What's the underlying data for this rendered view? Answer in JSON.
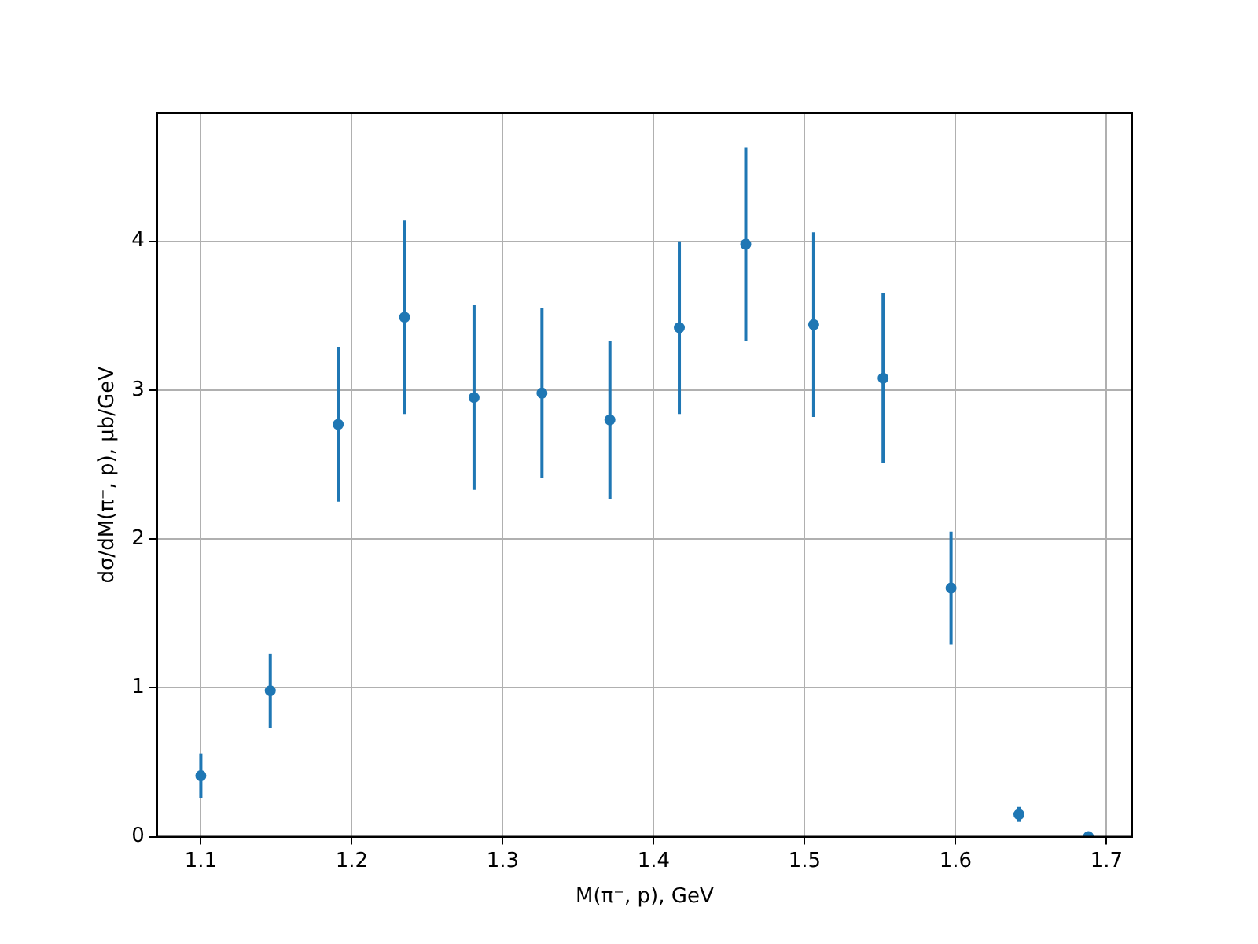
{
  "chart_data": {
    "type": "scatter",
    "xlabel": "M(π⁻, p), GeV",
    "ylabel": "dσ/dM(π⁻, p), μb/GeV",
    "x": [
      1.1,
      1.146,
      1.191,
      1.235,
      1.281,
      1.326,
      1.371,
      1.417,
      1.461,
      1.506,
      1.552,
      1.597,
      1.642,
      1.688
    ],
    "series": [
      {
        "color": "#1f77b4",
        "values": [
          0.41,
          0.98,
          2.77,
          3.49,
          2.95,
          2.98,
          2.8,
          3.42,
          3.98,
          3.44,
          3.08,
          1.67,
          0.15,
          0.0
        ],
        "errors": [
          0.15,
          0.25,
          0.52,
          0.65,
          0.62,
          0.57,
          0.53,
          0.58,
          0.65,
          0.62,
          0.57,
          0.38,
          0.05,
          null
        ]
      }
    ],
    "xlim": [
      1.071,
      1.717
    ],
    "xticks": [
      1.1,
      1.2,
      1.3,
      1.4,
      1.5,
      1.6,
      1.7
    ],
    "ylim": [
      0,
      4.86
    ],
    "yticks": [
      0,
      1,
      2,
      3,
      4
    ],
    "grid": true,
    "legend": false,
    "marker": "circle"
  }
}
